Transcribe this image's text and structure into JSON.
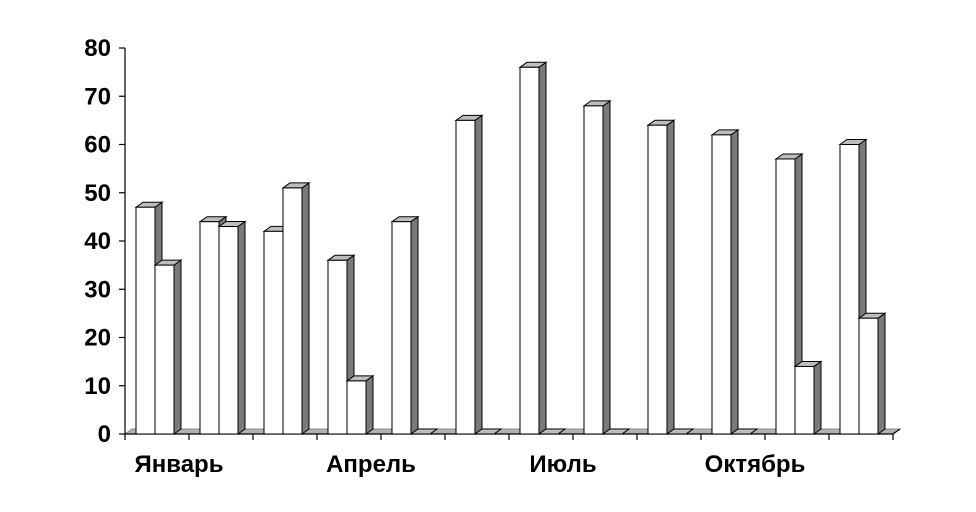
{
  "chart_data": {
    "type": "bar",
    "style": "3d-clustered-column",
    "categories": [
      "Январь",
      "",
      "",
      "Апрель",
      "",
      "",
      "Июль",
      "",
      "",
      "Октябрь",
      "",
      ""
    ],
    "series": [
      {
        "values": [
          47,
          44,
          42,
          36,
          44,
          65,
          76,
          68,
          64,
          62,
          57,
          60
        ]
      },
      {
        "values": [
          35,
          43,
          51,
          11,
          0,
          0,
          0,
          0,
          0,
          0,
          14,
          24
        ]
      }
    ],
    "yticks": [
      "0",
      "10",
      "20",
      "30",
      "40",
      "50",
      "60",
      "70",
      "80"
    ],
    "ylim": [
      0,
      80
    ],
    "grid": false,
    "legend": "none",
    "colors": {
      "bar_face": "#ffffff",
      "bar_side": "#7a7a7a",
      "bar_top": "#bdbdbd",
      "outline": "#000000",
      "floor": "#b0b0b0"
    }
  }
}
